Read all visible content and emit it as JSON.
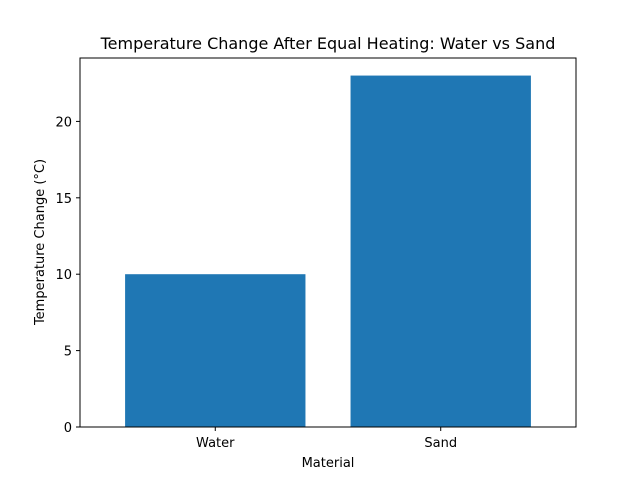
{
  "chart_data": {
    "type": "bar",
    "title": "Temperature Change After Equal Heating: Water vs Sand",
    "xlabel": "Material",
    "ylabel": "Temperature Change (°C)",
    "categories": [
      "Water",
      "Sand"
    ],
    "values": [
      10,
      23
    ],
    "ylim": [
      0,
      24.15
    ],
    "yticks": [
      0,
      5,
      10,
      15,
      20
    ],
    "grid": false,
    "legend": "none",
    "bar_color": "#1f77b4"
  }
}
